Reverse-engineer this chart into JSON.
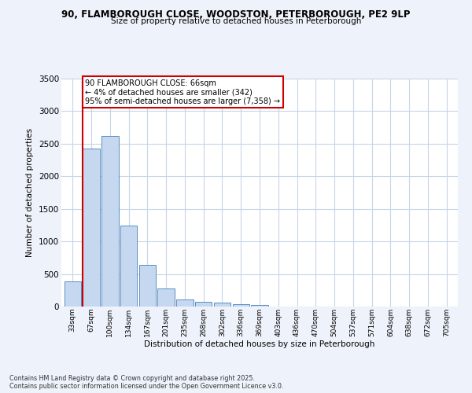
{
  "title_line1": "90, FLAMBOROUGH CLOSE, WOODSTON, PETERBOROUGH, PE2 9LP",
  "title_line2": "Size of property relative to detached houses in Peterborough",
  "xlabel": "Distribution of detached houses by size in Peterborough",
  "ylabel": "Number of detached properties",
  "bar_labels": [
    "33sqm",
    "67sqm",
    "100sqm",
    "134sqm",
    "167sqm",
    "201sqm",
    "235sqm",
    "268sqm",
    "302sqm",
    "336sqm",
    "369sqm",
    "403sqm",
    "436sqm",
    "470sqm",
    "504sqm",
    "537sqm",
    "571sqm",
    "604sqm",
    "638sqm",
    "672sqm",
    "705sqm"
  ],
  "bar_values": [
    390,
    2420,
    2620,
    1240,
    640,
    280,
    110,
    70,
    55,
    40,
    25,
    0,
    0,
    0,
    0,
    0,
    0,
    0,
    0,
    0,
    0
  ],
  "bar_color": "#c5d8f0",
  "bar_edge_color": "#5a8fc3",
  "annotation_title": "90 FLAMBOROUGH CLOSE: 66sqm",
  "annotation_line1": "← 4% of detached houses are smaller (342)",
  "annotation_line2": "95% of semi-detached houses are larger (7,358) →",
  "annotation_box_color": "#ffffff",
  "annotation_box_edge": "#cc0000",
  "red_line_color": "#cc0000",
  "ylim": [
    0,
    3500
  ],
  "yticks": [
    0,
    500,
    1000,
    1500,
    2000,
    2500,
    3000,
    3500
  ],
  "footer_line1": "Contains HM Land Registry data © Crown copyright and database right 2025.",
  "footer_line2": "Contains public sector information licensed under the Open Government Licence v3.0.",
  "background_color": "#eef2fa",
  "plot_bg_color": "#ffffff",
  "grid_color": "#c8d4e8"
}
